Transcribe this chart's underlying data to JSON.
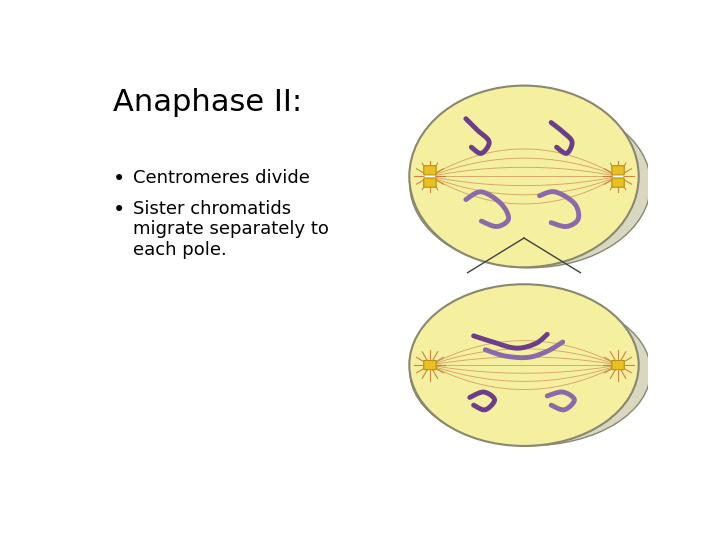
{
  "title": "Anaphase II:",
  "bullet1": "Centromeres divide",
  "bullet2": "Sister chromatids\nmigrate separately to\neach pole.",
  "bg_color": "#ffffff",
  "title_fontsize": 22,
  "bullet_fontsize": 13,
  "cell_color": "#f5f0a0",
  "cell_color2": "#f0edcc",
  "cell_edge_color": "#888870",
  "shadow_color": "#d8d8c0",
  "chromatid_color1": "#6b3d8a",
  "chromatid_color2": "#8b6aaa",
  "spindle_color": "#c8824a",
  "centromere_color": "#e8c020",
  "centromere_edge": "#b89010",
  "aster_center": "#ffffff",
  "aster_color": "#c87030",
  "triangle_color": "#404040"
}
